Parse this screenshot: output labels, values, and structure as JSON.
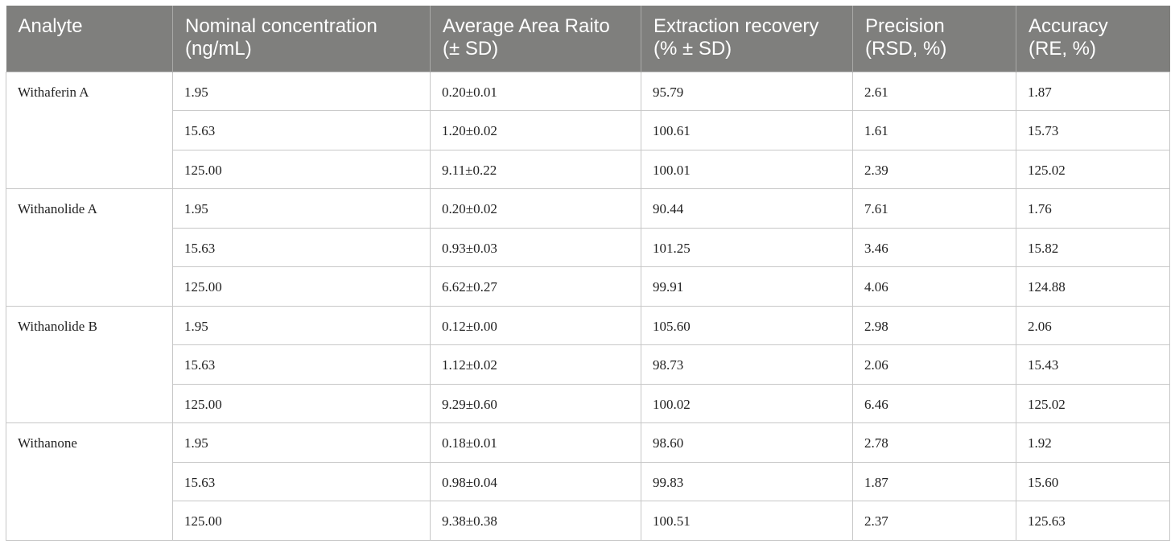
{
  "table": {
    "headers": [
      [
        "Analyte",
        ""
      ],
      [
        "Nominal concentration",
        "(ng/mL)"
      ],
      [
        "Average Area Raito",
        "(± SD)"
      ],
      [
        "Extraction recovery",
        "(% ± SD)"
      ],
      [
        "Precision",
        "(RSD, %)"
      ],
      [
        "Accuracy",
        "(RE, %)"
      ]
    ],
    "rows": [
      [
        "Withaferin A",
        "1.95",
        "0.20±0.01",
        "95.79",
        "2.61",
        "1.87"
      ],
      [
        "",
        "15.63",
        "1.20±0.02",
        "100.61",
        "1.61",
        "15.73"
      ],
      [
        "",
        "125.00",
        "9.11±0.22",
        "100.01",
        "2.39",
        "125.02"
      ],
      [
        "Withanolide A",
        "1.95",
        "0.20±0.02",
        "90.44",
        "7.61",
        "1.76"
      ],
      [
        "",
        "15.63",
        "0.93±0.03",
        "101.25",
        "3.46",
        "15.82"
      ],
      [
        "",
        "125.00",
        "6.62±0.27",
        "99.91",
        "4.06",
        "124.88"
      ],
      [
        "Withanolide B",
        "1.95",
        "0.12±0.00",
        "105.60",
        "2.98",
        "2.06"
      ],
      [
        "",
        "15.63",
        "1.12±0.02",
        "98.73",
        "2.06",
        "15.43"
      ],
      [
        "",
        "125.00",
        "9.29±0.60",
        "100.02",
        "6.46",
        "125.02"
      ],
      [
        "Withanone",
        "1.95",
        "0.18±0.01",
        "98.60",
        "2.78",
        "1.92"
      ],
      [
        "",
        "15.63",
        "0.98±0.04",
        "99.83",
        "1.87",
        "15.60"
      ],
      [
        "",
        "125.00",
        "9.38±0.38",
        "100.51",
        "2.37",
        "125.63"
      ]
    ]
  }
}
